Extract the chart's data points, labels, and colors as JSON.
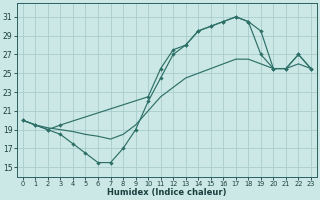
{
  "xlabel": "Humidex (Indice chaleur)",
  "bg_color": "#cce8e6",
  "grid_color": "#aacccc",
  "line_color": "#2d7068",
  "xlim": [
    -0.5,
    23.5
  ],
  "ylim": [
    14.0,
    32.5
  ],
  "xticks": [
    0,
    1,
    2,
    3,
    4,
    5,
    6,
    7,
    8,
    9,
    10,
    11,
    12,
    13,
    14,
    15,
    16,
    17,
    18,
    19,
    20,
    21,
    22,
    23
  ],
  "yticks": [
    15,
    17,
    19,
    21,
    23,
    25,
    27,
    29,
    31
  ],
  "line_top_x": [
    0,
    1,
    2,
    3,
    10,
    11,
    12,
    13,
    14,
    15,
    16,
    17,
    18,
    19,
    20,
    21,
    22,
    23
  ],
  "line_top_y": [
    20.0,
    19.5,
    19.0,
    19.5,
    22.5,
    25.5,
    27.5,
    28.0,
    29.5,
    30.0,
    30.5,
    31.0,
    30.5,
    29.5,
    25.5,
    25.5,
    27.0,
    25.5
  ],
  "line_mid_x": [
    0,
    1,
    2,
    3,
    4,
    5,
    6,
    7,
    8,
    9,
    10,
    11,
    12,
    13,
    14,
    15,
    16,
    17,
    18,
    19,
    20,
    21,
    22,
    23
  ],
  "line_mid_y": [
    20.0,
    19.5,
    19.2,
    19.0,
    18.8,
    18.5,
    18.3,
    18.0,
    18.5,
    19.5,
    21.0,
    22.5,
    23.5,
    24.5,
    25.0,
    25.5,
    26.0,
    26.5,
    26.5,
    26.0,
    25.5,
    25.5,
    26.0,
    25.5
  ],
  "line_bot_x": [
    0,
    1,
    2,
    3,
    4,
    5,
    6,
    7,
    8,
    9,
    10,
    11,
    12,
    13,
    14,
    15,
    16,
    17,
    18,
    19,
    20,
    21,
    22,
    23
  ],
  "line_bot_y": [
    20.0,
    19.5,
    19.0,
    18.5,
    17.5,
    16.5,
    15.5,
    15.5,
    17.0,
    19.0,
    22.0,
    24.5,
    27.0,
    28.0,
    29.5,
    30.0,
    30.5,
    31.0,
    30.5,
    27.0,
    25.5,
    25.5,
    27.0,
    25.5
  ]
}
